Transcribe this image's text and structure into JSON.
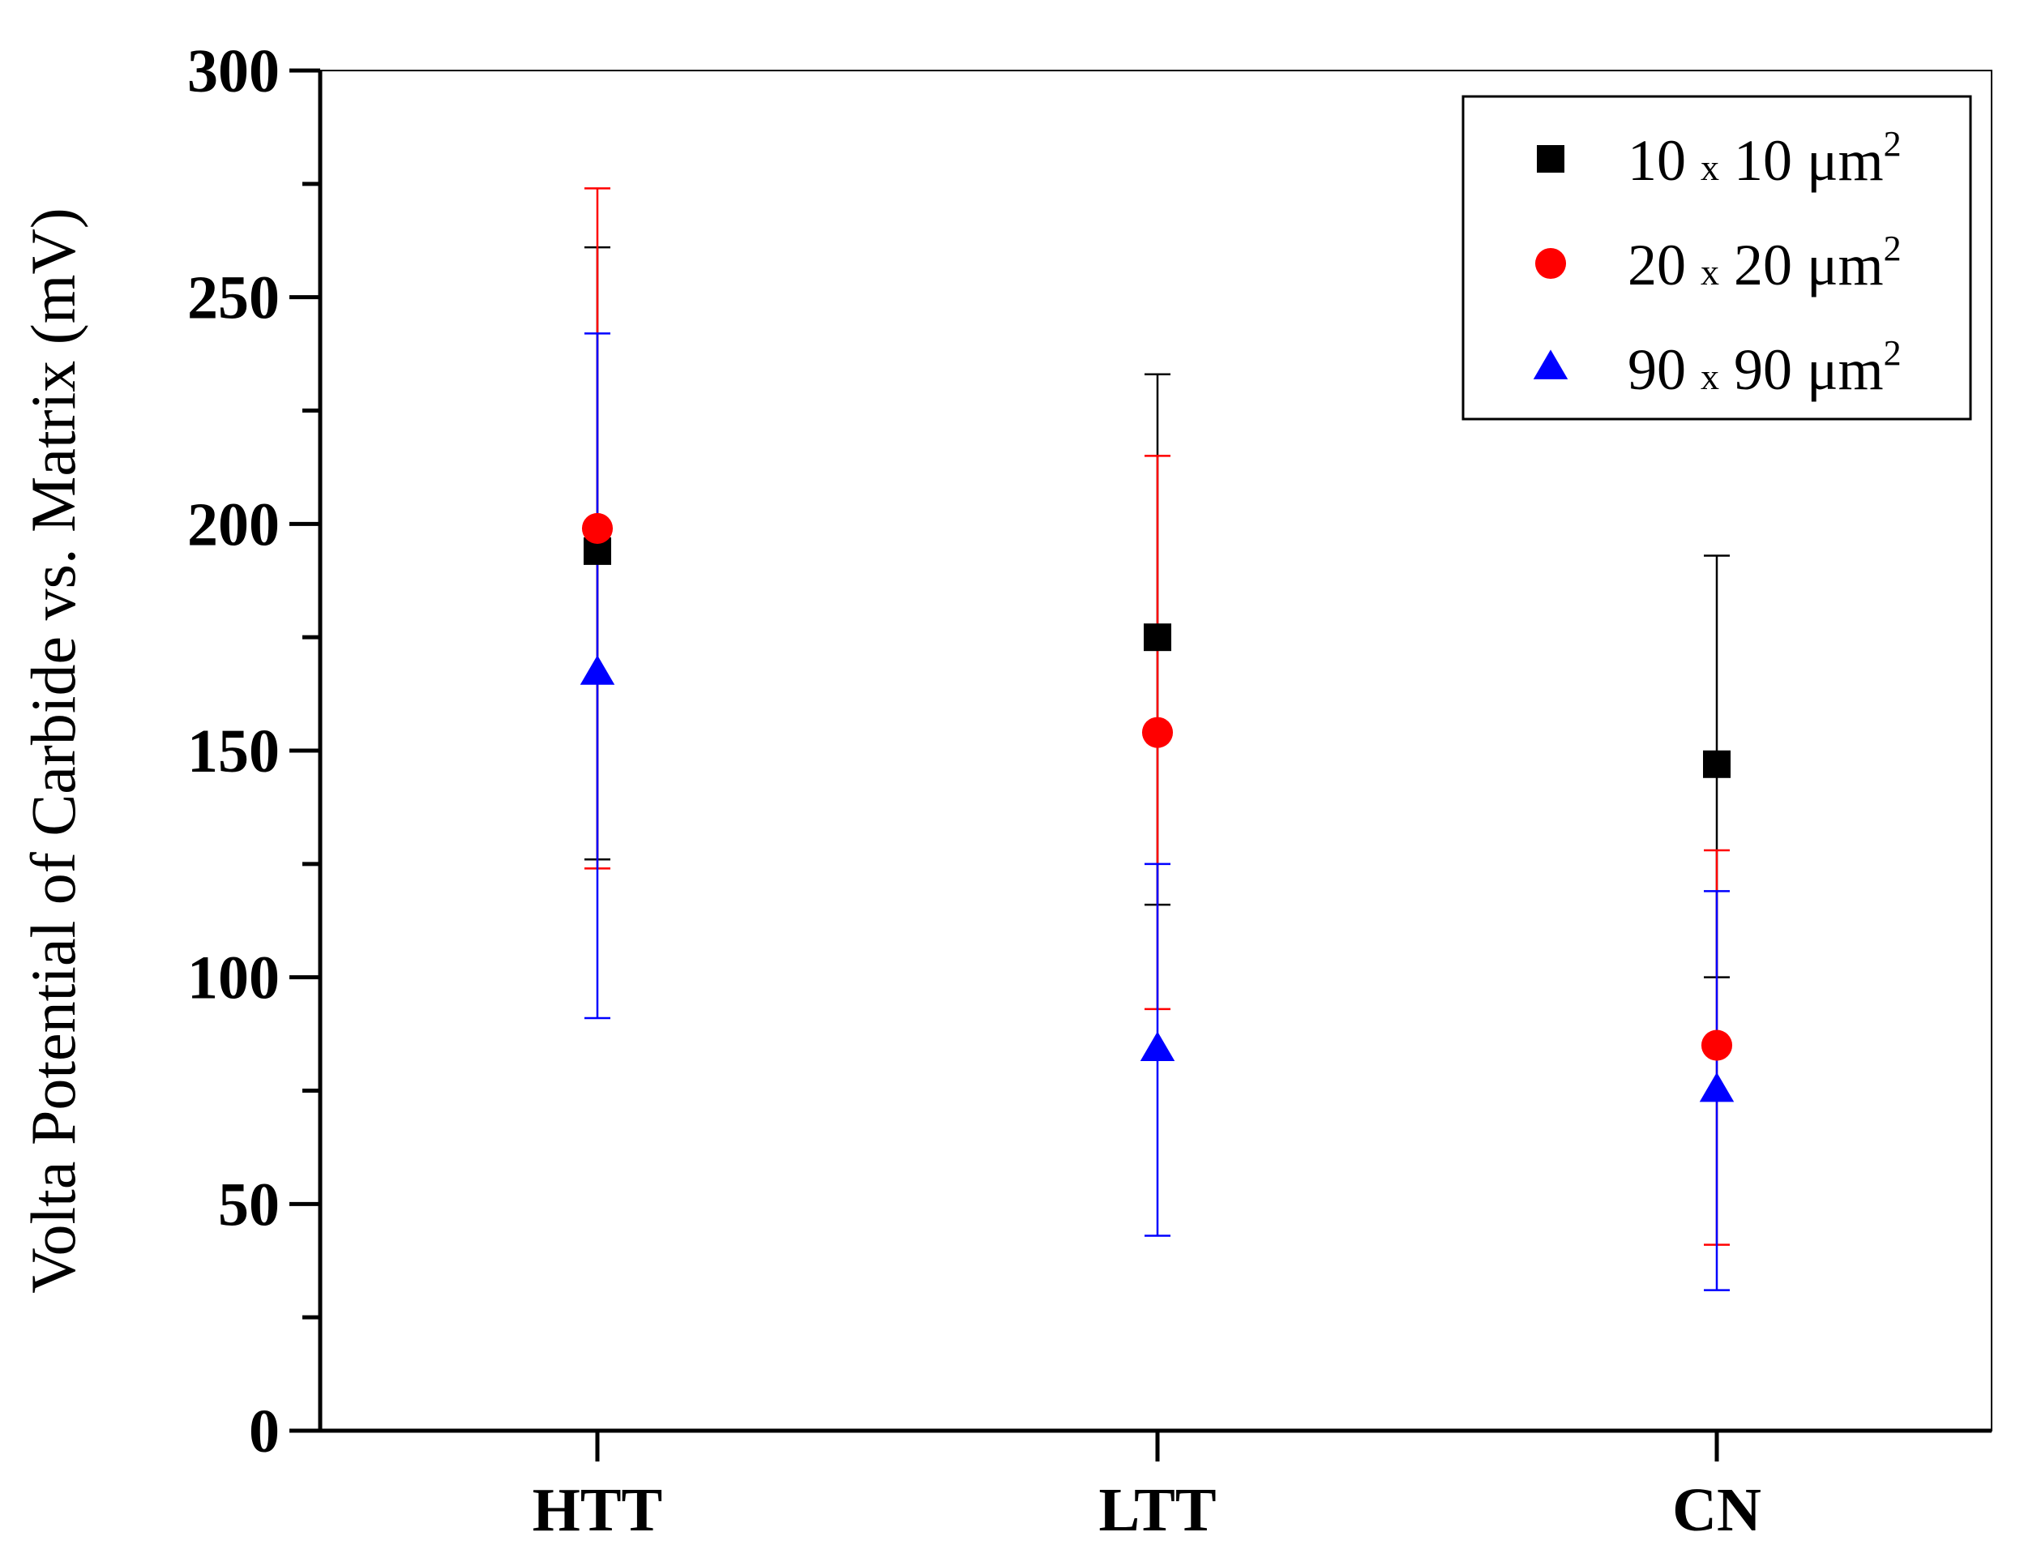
{
  "chart_data": {
    "type": "scatter",
    "title": "",
    "xlabel": "",
    "ylabel": "Volta Potential of Carbide vs. Matrix (mV)",
    "categories": [
      "HTT",
      "LTT",
      "CN"
    ],
    "ylim": [
      0,
      300
    ],
    "yticks": [
      0,
      50,
      100,
      150,
      200,
      250,
      300
    ],
    "ytick_labels": [
      "0",
      "50",
      "100",
      "150",
      "200",
      "250",
      "300"
    ],
    "grid": false,
    "legend_position": "top-right",
    "series": [
      {
        "name": "10 x 10 μm2",
        "legend": {
          "a": "10",
          "x": "x",
          "b": "10 μm",
          "sup": "2"
        },
        "marker": "square",
        "color": "#000000",
        "values": [
          194,
          175,
          147
        ],
        "err_low": [
          126,
          116,
          100
        ],
        "err_high": [
          261,
          233,
          193
        ]
      },
      {
        "name": "20 x 20 μm2",
        "legend": {
          "a": "20",
          "x": "x",
          "b": "20 μm",
          "sup": "2"
        },
        "marker": "circle",
        "color": "#ff0000",
        "values": [
          199,
          154,
          85
        ],
        "err_low": [
          124,
          93,
          41
        ],
        "err_high": [
          274,
          215,
          128
        ]
      },
      {
        "name": "90 x 90 μm2",
        "legend": {
          "a": "90",
          "x": "x",
          "b": "90 μm",
          "sup": "2"
        },
        "marker": "triangle",
        "color": "#0000ff",
        "values": [
          167,
          84,
          75
        ],
        "err_low": [
          91,
          43,
          31
        ],
        "err_high": [
          242,
          125,
          119
        ]
      }
    ]
  }
}
